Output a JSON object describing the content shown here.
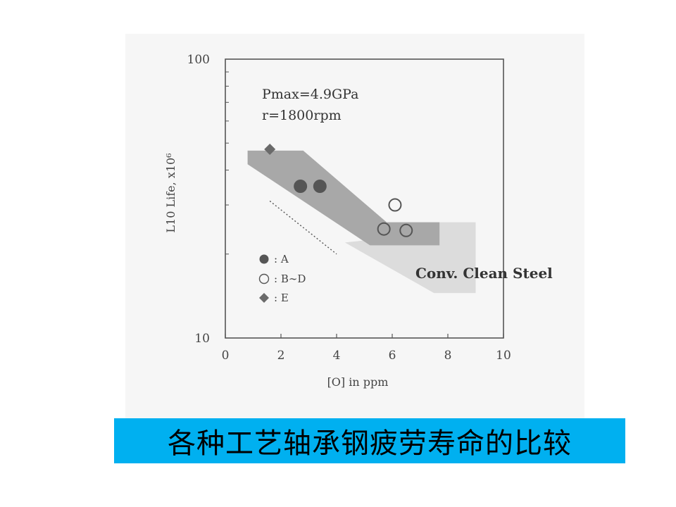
{
  "chart_data": {
    "type": "scatter",
    "xlabel": "[O] in ppm",
    "ylabel": "L10 Life, x10⁶",
    "xlim": [
      0,
      10
    ],
    "ylim": [
      10,
      100
    ],
    "yscale": "log",
    "x_ticks": [
      "0",
      "2",
      "4",
      "6",
      "8",
      "10"
    ],
    "y_ticks": [
      "10",
      "100"
    ],
    "conditions": [
      "Pmax=4.9GPa",
      "r=1800rpm"
    ],
    "series": [
      {
        "name": "A",
        "marker": "filled-circle",
        "color": "#555555",
        "points": [
          {
            "x": 2.7,
            "y": 35
          },
          {
            "x": 3.4,
            "y": 35
          }
        ]
      },
      {
        "name": "B~D",
        "marker": "open-circle",
        "color": "#555555",
        "points": [
          {
            "x": 6.1,
            "y": 30
          },
          {
            "x": 5.7,
            "y": 24.6
          },
          {
            "x": 6.5,
            "y": 24.3
          }
        ]
      },
      {
        "name": "E",
        "marker": "diamond",
        "color": "#6a6a6a",
        "points": [
          {
            "x": 1.6,
            "y": 47.5
          }
        ]
      }
    ],
    "legend": [
      {
        "symbol": "●",
        "label": ": A"
      },
      {
        "symbol": "○",
        "label": ": B∼D"
      },
      {
        "symbol": "◆",
        "label": ": E"
      }
    ],
    "regions": [
      {
        "label": "",
        "color": "#a8a8a8",
        "polygon": [
          [
            0.8,
            47
          ],
          [
            2.8,
            47
          ],
          [
            5.8,
            26
          ],
          [
            7.7,
            26
          ],
          [
            7.7,
            21.5
          ],
          [
            5.2,
            21.5
          ],
          [
            0.8,
            42
          ]
        ]
      },
      {
        "label": "Conv. Clean Steel",
        "color": "#dcdcdc",
        "polygon": [
          [
            4.3,
            22
          ],
          [
            5.2,
            22.5
          ],
          [
            7.7,
            26
          ],
          [
            9.0,
            26
          ],
          [
            9.0,
            14.5
          ],
          [
            7.5,
            14.5
          ]
        ]
      }
    ],
    "trend_line": {
      "style": "dotted",
      "points": [
        [
          1.6,
          31
        ],
        [
          4.0,
          20
        ]
      ]
    },
    "legend_position": "bottom-left",
    "grid": false
  },
  "caption": "各种工艺轴承钢疲劳寿命的比较",
  "colors": {
    "caption_bg": "#00b0f0",
    "panel_bg": "#f6f6f6"
  }
}
